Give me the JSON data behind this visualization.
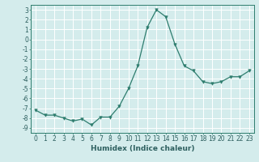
{
  "x": [
    0,
    1,
    2,
    3,
    4,
    5,
    6,
    7,
    8,
    9,
    10,
    11,
    12,
    13,
    14,
    15,
    16,
    17,
    18,
    19,
    20,
    21,
    22,
    23
  ],
  "y": [
    -7.2,
    -7.7,
    -7.7,
    -8.0,
    -8.3,
    -8.1,
    -8.7,
    -7.9,
    -7.9,
    -6.8,
    -5.0,
    -2.7,
    1.2,
    3.0,
    2.3,
    -0.5,
    -2.7,
    -3.2,
    -4.3,
    -4.5,
    -4.3,
    -3.8,
    -3.8,
    -3.2
  ],
  "line_color": "#2e7d6e",
  "marker": "v",
  "marker_size": 2.5,
  "xlabel": "Humidex (Indice chaleur)",
  "xlim": [
    -0.5,
    23.5
  ],
  "ylim": [
    -9.5,
    3.5
  ],
  "yticks": [
    3,
    2,
    1,
    0,
    -1,
    -2,
    -3,
    -4,
    -5,
    -6,
    -7,
    -8,
    -9
  ],
  "xticks": [
    0,
    1,
    2,
    3,
    4,
    5,
    6,
    7,
    8,
    9,
    10,
    11,
    12,
    13,
    14,
    15,
    16,
    17,
    18,
    19,
    20,
    21,
    22,
    23
  ],
  "bg_color": "#d4ecec",
  "grid_color": "#ffffff",
  "label_fontsize": 6.5,
  "tick_fontsize": 5.5,
  "tick_color": "#2e6060",
  "spine_color": "#2e7d6e",
  "line_width": 0.9
}
